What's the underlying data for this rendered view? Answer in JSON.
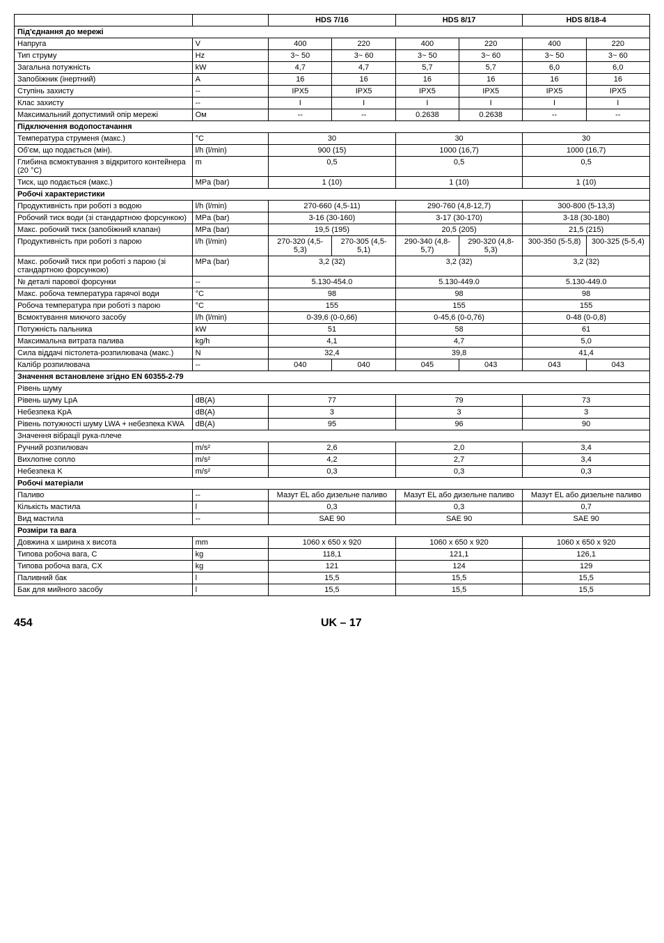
{
  "header": {
    "c1": "HDS 7/16",
    "c2": "HDS 8/17",
    "c3": "HDS 8/18-4"
  },
  "sections": {
    "s1": "Під'єднання до мережі",
    "s2": "Підключення водопостачання",
    "s3": "Робочі характеристики",
    "s4": "Значення встановлене згідно EN 60355-2-79",
    "s5": "Рівень шуму",
    "s6": "Значення вібрації рука-плече",
    "s7": "Робочі матеріали",
    "s8": "Розміри та вага"
  },
  "rows": {
    "r1": {
      "label": "Напруга",
      "unit": "V",
      "a1": "400",
      "a2": "220",
      "b1": "400",
      "b2": "220",
      "c1": "400",
      "c2": "220"
    },
    "r2": {
      "label": "Тип струму",
      "unit": "Hz",
      "a1": "3~ 50",
      "a2": "3~ 60",
      "b1": "3~ 50",
      "b2": "3~ 60",
      "c1": "3~ 50",
      "c2": "3~ 60"
    },
    "r3": {
      "label": "Загальна потужність",
      "unit": "kW",
      "a1": "4,7",
      "a2": "4,7",
      "b1": "5,7",
      "b2": "5,7",
      "c1": "6,0",
      "c2": "6,0"
    },
    "r4": {
      "label": "Запобіжник (інертний)",
      "unit": "A",
      "a1": "16",
      "a2": "16",
      "b1": "16",
      "b2": "16",
      "c1": "16",
      "c2": "16"
    },
    "r5": {
      "label": "Ступінь захисту",
      "unit": "--",
      "a1": "IPX5",
      "a2": "IPX5",
      "b1": "IPX5",
      "b2": "IPX5",
      "c1": "IPX5",
      "c2": "IPX5"
    },
    "r6": {
      "label": "Клас захисту",
      "unit": "--",
      "a1": "I",
      "a2": "I",
      "b1": "I",
      "b2": "I",
      "c1": "I",
      "c2": "I"
    },
    "r7": {
      "label": "Максимальний допустимий опір мережі",
      "unit": "Ом",
      "a1": "--",
      "a2": "--",
      "b1": "0.2638",
      "b2": "0.2638",
      "c1": "--",
      "c2": "--"
    },
    "r8": {
      "label": "Температура струменя (макс.)",
      "unit": "°C",
      "a": "30",
      "b": "30",
      "c": "30"
    },
    "r9": {
      "label": "Об'єм, що подається (мін).",
      "unit": "l/h (l/min)",
      "a": "900 (15)",
      "b": "1000 (16,7)",
      "c": "1000 (16,7)"
    },
    "r10": {
      "label": "Глибина всмоктування з відкритого контейнера (20 °C)",
      "unit": "m",
      "a": "0,5",
      "b": "0,5",
      "c": "0,5"
    },
    "r11": {
      "label": "Тиск, що подається (макс.)",
      "unit": "MPa (bar)",
      "a": "1 (10)",
      "b": "1 (10)",
      "c": "1 (10)"
    },
    "r12": {
      "label": "Продуктивність при роботі з водою",
      "unit": "l/h (l/min)",
      "a": "270-660 (4,5-11)",
      "b": "290-760 (4,8-12,7)",
      "c": "300-800 (5-13,3)"
    },
    "r13": {
      "label": "Робочий тиск води (зі стандартною форсункою)",
      "unit": "MPa (bar)",
      "a": "3-16 (30-160)",
      "b": "3-17 (30-170)",
      "c": "3-18 (30-180)"
    },
    "r14": {
      "label": "Макс. робочий тиск (запобіжний клапан)",
      "unit": "MPa (bar)",
      "a": "19,5 (195)",
      "b": "20,5 (205)",
      "c": "21,5 (215)"
    },
    "r15": {
      "label": "Продуктивність при роботі з парою",
      "unit": "l/h (l/min)",
      "a1": "270-320 (4,5-5,3)",
      "a2": "270-305 (4,5-5,1)",
      "b1": "290-340 (4,8-5,7)",
      "b2": "290-320 (4,8-5,3)",
      "c1": "300-350 (5-5,8)",
      "c2": "300-325 (5-5,4)"
    },
    "r16": {
      "label": "Макс. робочий тиск при роботі з парою (зі стандартною форсункою)",
      "unit": "MPa (bar)",
      "a": "3,2 (32)",
      "b": "3,2 (32)",
      "c": "3,2 (32)"
    },
    "r17": {
      "label": "№ деталі парової форсунки",
      "unit": "--",
      "a": "5.130-454.0",
      "b": "5.130-449.0",
      "c": "5.130-449.0"
    },
    "r18": {
      "label": "Макс. робоча температура гарячої води",
      "unit": "°C",
      "a": "98",
      "b": "98",
      "c": "98"
    },
    "r19": {
      "label": "Робоча температура при роботі з парою",
      "unit": "°C",
      "a": "155",
      "b": "155",
      "c": "155"
    },
    "r20": {
      "label": "Всмоктування миючого засобу",
      "unit": "l/h (l/min)",
      "a": "0-39,6 (0-0,66)",
      "b": "0-45,6 (0-0,76)",
      "c": "0-48 (0-0,8)"
    },
    "r21": {
      "label": "Потужність пальника",
      "unit": "kW",
      "a": "51",
      "b": "58",
      "c": "61"
    },
    "r22": {
      "label": "Максимальна витрата палива",
      "unit": "kg/h",
      "a": "4,1",
      "b": "4,7",
      "c": "5,0"
    },
    "r23": {
      "label": "Сила віддачі пістолета-розпилювача (макс.)",
      "unit": "N",
      "a": "32,4",
      "b": "39,8",
      "c": "41,4"
    },
    "r24": {
      "label": "Калібр розпилювача",
      "unit": "--",
      "a1": "040",
      "a2": "040",
      "b1": "045",
      "b2": "043",
      "c1": "043",
      "c2": "043"
    },
    "r25": {
      "label": "Рівень шуму LpA",
      "unit": "dB(A)",
      "a": "77",
      "b": "79",
      "c": "73"
    },
    "r26": {
      "label": "Небезпека KpA",
      "unit": "dB(A)",
      "a": "3",
      "b": "3",
      "c": "3"
    },
    "r27": {
      "label": "Рівень потужності шуму LWA + небезпека KWA",
      "unit": "dB(A)",
      "a": "95",
      "b": "96",
      "c": "90"
    },
    "r28": {
      "label": "Ручний розпилювач",
      "unit": "m/s²",
      "a": "2,6",
      "b": "2,0",
      "c": "3,4"
    },
    "r29": {
      "label": "Вихлопне сопло",
      "unit": "m/s²",
      "a": "4,2",
      "b": "2,7",
      "c": "3,4"
    },
    "r30": {
      "label": "Небезпека K",
      "unit": "m/s²",
      "a": "0,3",
      "b": "0,3",
      "c": "0,3"
    },
    "r31": {
      "label": "Паливо",
      "unit": "--",
      "a": "Мазут EL або дизельне паливо",
      "b": "Мазут EL або дизельне паливо",
      "c": "Мазут EL або дизельне паливо"
    },
    "r32": {
      "label": "Кількість мастила",
      "unit": "l",
      "a": "0,3",
      "b": "0,3",
      "c": "0,7"
    },
    "r33": {
      "label": "Вид мастила",
      "unit": "--",
      "a": "SAE 90",
      "b": "SAE 90",
      "c": "SAE 90"
    },
    "r34": {
      "label": "Довжина x ширина x висота",
      "unit": "mm",
      "a": "1060 x 650 x 920",
      "b": "1060 x 650 x 920",
      "c": "1060 x 650 x 920"
    },
    "r35": {
      "label": "Типова робоча вага, C",
      "unit": "kg",
      "a": "118,1",
      "b": "121,1",
      "c": "126,1"
    },
    "r36": {
      "label": "Типова робоча вага, CX",
      "unit": "kg",
      "a": "121",
      "b": "124",
      "c": "129"
    },
    "r37": {
      "label": "Паливний бак",
      "unit": "l",
      "a": "15,5",
      "b": "15,5",
      "c": "15,5"
    },
    "r38": {
      "label": "Бак для мийного засобу",
      "unit": "l",
      "a": "15,5",
      "b": "15,5",
      "c": "15,5"
    }
  },
  "footer": {
    "page": "454",
    "locale": "UK – 17"
  }
}
